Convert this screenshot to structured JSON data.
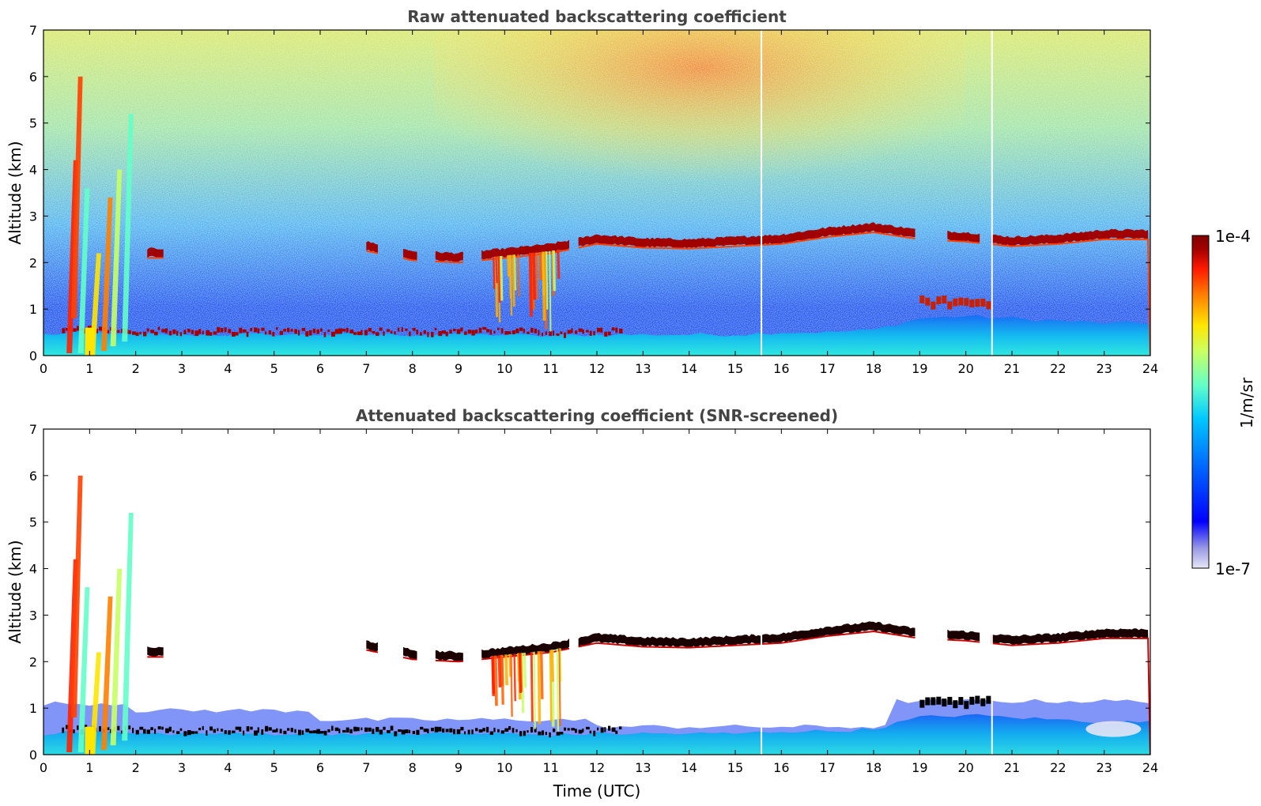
{
  "chart_data": [
    {
      "type": "heatmap",
      "title": "Raw attenuated backscattering coefficient",
      "xlabel": "",
      "ylabel": "Altitude (km)",
      "xlim": [
        0,
        24
      ],
      "ylim": [
        0,
        7
      ],
      "xticks": [
        "0",
        "1",
        "2",
        "3",
        "4",
        "5",
        "6",
        "7",
        "8",
        "9",
        "10",
        "11",
        "12",
        "13",
        "14",
        "15",
        "16",
        "17",
        "18",
        "19",
        "20",
        "21",
        "22",
        "23",
        "24"
      ],
      "yticks": [
        "0",
        "1",
        "2",
        "3",
        "4",
        "5",
        "6",
        "7"
      ],
      "cloud_layer_km": [
        [
          0,
          null
        ],
        [
          1,
          null
        ],
        [
          2,
          2.2
        ],
        [
          3,
          null
        ],
        [
          4,
          null
        ],
        [
          5,
          null
        ],
        [
          6,
          null
        ],
        [
          7,
          2.35
        ],
        [
          8,
          2.15
        ],
        [
          9,
          2.1
        ],
        [
          10,
          2.2
        ],
        [
          11,
          2.3
        ],
        [
          12,
          2.5
        ],
        [
          13,
          2.42
        ],
        [
          14,
          2.4
        ],
        [
          15,
          2.45
        ],
        [
          16,
          2.5
        ],
        [
          17,
          2.65
        ],
        [
          18,
          2.75
        ],
        [
          19,
          2.6
        ],
        [
          20,
          2.55
        ],
        [
          21,
          2.45
        ],
        [
          22,
          2.5
        ],
        [
          23,
          2.6
        ],
        [
          24,
          2.6
        ]
      ],
      "boundary_layer_km": [
        [
          0,
          0.45
        ],
        [
          1,
          0.5
        ],
        [
          2,
          0.45
        ],
        [
          3,
          0.45
        ],
        [
          4,
          0.45
        ],
        [
          5,
          0.45
        ],
        [
          6,
          0.45
        ],
        [
          7,
          0.45
        ],
        [
          8,
          0.45
        ],
        [
          9,
          0.45
        ],
        [
          10,
          0.45
        ],
        [
          11,
          0.42
        ],
        [
          12,
          0.45
        ],
        [
          13,
          0.45
        ],
        [
          14,
          0.45
        ],
        [
          15,
          0.45
        ],
        [
          16,
          0.5
        ],
        [
          17,
          0.5
        ],
        [
          18,
          0.55
        ],
        [
          19,
          0.8
        ],
        [
          20,
          0.85
        ],
        [
          21,
          0.8
        ],
        [
          22,
          0.75
        ],
        [
          23,
          0.7
        ],
        [
          24,
          0.7
        ]
      ]
    },
    {
      "type": "heatmap",
      "title": "Attenuated backscattering coefficient (SNR-screened)",
      "xlabel": "Time (UTC)",
      "ylabel": "Altitude (km)",
      "xlim": [
        0,
        24
      ],
      "ylim": [
        0,
        7
      ],
      "xticks": [
        "0",
        "1",
        "2",
        "3",
        "4",
        "5",
        "6",
        "7",
        "8",
        "9",
        "10",
        "11",
        "12",
        "13",
        "14",
        "15",
        "16",
        "17",
        "18",
        "19",
        "20",
        "21",
        "22",
        "23",
        "24"
      ],
      "yticks": [
        "0",
        "1",
        "2",
        "3",
        "4",
        "5",
        "6",
        "7"
      ]
    }
  ],
  "colorbar": {
    "label": "1/m/sr",
    "max_label": "1e-4",
    "min_label": "1e-7",
    "colors": [
      "#e6e6f5",
      "#9999e6",
      "#0000ff",
      "#0064ff",
      "#00c8ff",
      "#64ffc8",
      "#c8ff64",
      "#ffe600",
      "#ff8000",
      "#ff1a00",
      "#a00000",
      "#800000"
    ]
  }
}
